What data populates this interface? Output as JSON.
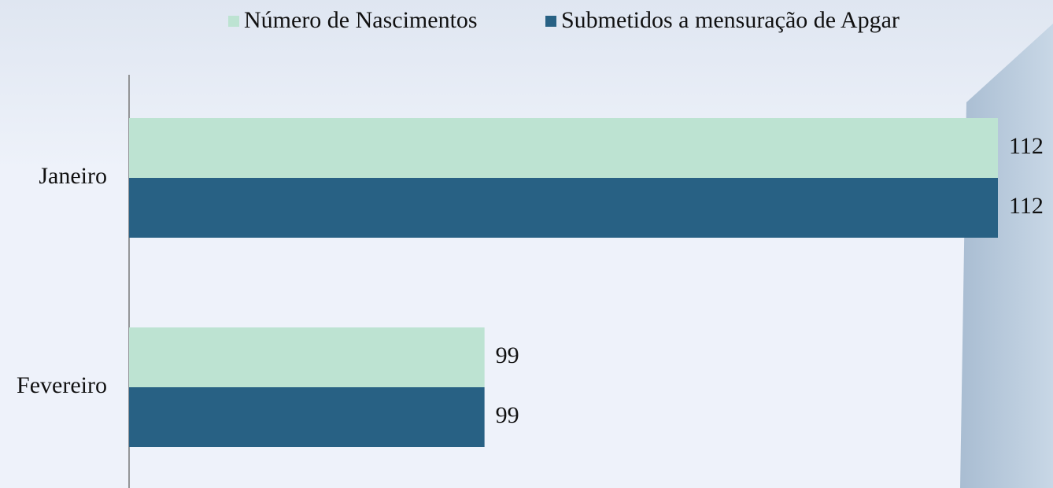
{
  "chart_data": {
    "type": "hbar",
    "categories": [
      "Janeiro",
      "Fevereiro"
    ],
    "series": [
      {
        "name": "Número de Nascimentos",
        "color": "#bde3d2",
        "values": [
          112,
          99
        ]
      },
      {
        "name": "Submetidos a mensuração de Apgar",
        "color": "#286184",
        "values": [
          112,
          99
        ]
      }
    ],
    "xlim": [
      90,
      112
    ],
    "legend": "top"
  }
}
